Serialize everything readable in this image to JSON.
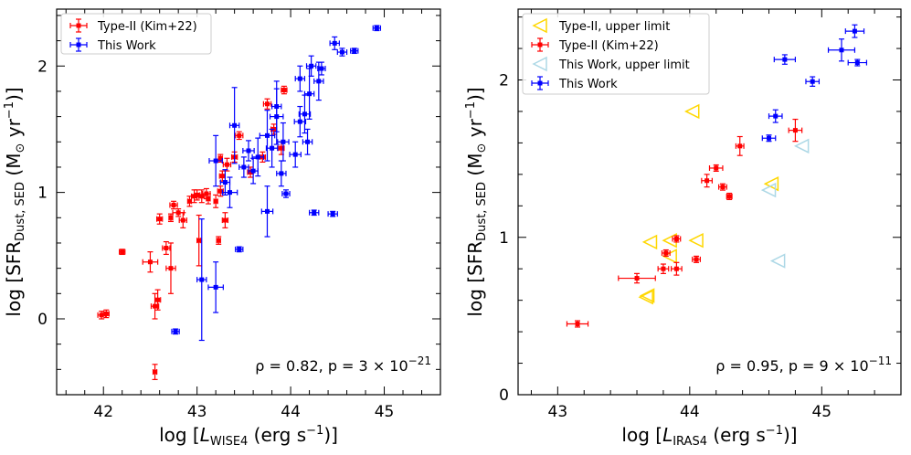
{
  "chart_data": [
    {
      "type": "scatter",
      "xlabel_parts": [
        "log [",
        "L",
        "WISE4",
        " (erg s",
        "−1",
        ")]"
      ],
      "ylabel_parts": [
        "log [SFR",
        "Dust, SED",
        " (M",
        "⊙",
        " yr",
        "−1",
        ")]"
      ],
      "xlim": [
        41.5,
        45.6
      ],
      "ylim": [
        -0.6,
        2.45
      ],
      "xticks": [
        42,
        43,
        44,
        45
      ],
      "xtick_labels": [
        "42",
        "43",
        "44",
        "45"
      ],
      "yticks": [
        0,
        1,
        2
      ],
      "ytick_labels": [
        "0",
        "1",
        "2"
      ],
      "annotation_main": "ρ = 0.82, p = 3 × 10",
      "annotation_exp": "−21",
      "legend_position": "top-left",
      "series": [
        {
          "name": "Type-II (Kim+22)",
          "color": "#ff0000",
          "points": [
            [
              41.98,
              0.03,
              0.04,
              0.03
            ],
            [
              42.03,
              0.04,
              0.03,
              0.03
            ],
            [
              42.2,
              0.53,
              0.03,
              0.02
            ],
            [
              42.5,
              0.45,
              0.08,
              0.08
            ],
            [
              42.55,
              -0.42,
              0.02,
              0.06
            ],
            [
              42.55,
              0.1,
              0.04,
              0.1
            ],
            [
              42.58,
              0.15,
              0.03,
              0.08
            ],
            [
              42.6,
              0.79,
              0.03,
              0.04
            ],
            [
              42.67,
              0.56,
              0.04,
              0.05
            ],
            [
              42.72,
              0.4,
              0.05,
              0.2
            ],
            [
              42.72,
              0.8,
              0.02,
              0.03
            ],
            [
              42.75,
              0.9,
              0.04,
              0.03
            ],
            [
              42.8,
              0.84,
              0.06,
              0.03
            ],
            [
              42.85,
              0.78,
              0.04,
              0.06
            ],
            [
              42.92,
              0.93,
              0.02,
              0.04
            ],
            [
              42.97,
              0.97,
              0.03,
              0.05
            ],
            [
              43.0,
              0.98,
              0.03,
              0.04
            ],
            [
              43.05,
              0.97,
              0.03,
              0.05
            ],
            [
              43.02,
              0.62,
              0.02,
              0.2
            ],
            [
              43.1,
              0.99,
              0.04,
              0.04
            ],
            [
              43.12,
              0.95,
              0.02,
              0.04
            ],
            [
              43.2,
              0.93,
              0.02,
              0.05
            ],
            [
              43.23,
              0.62,
              0.02,
              0.03
            ],
            [
              43.25,
              1.01,
              0.03,
              0.04
            ],
            [
              43.27,
              1.13,
              0.03,
              0.04
            ],
            [
              43.25,
              1.27,
              0.02,
              0.03
            ],
            [
              43.3,
              0.78,
              0.03,
              0.06
            ],
            [
              43.32,
              1.22,
              0.04,
              0.05
            ],
            [
              43.4,
              1.28,
              0.03,
              0.04
            ],
            [
              43.45,
              1.45,
              0.04,
              0.03
            ],
            [
              43.57,
              1.16,
              0.03,
              0.04
            ],
            [
              43.7,
              1.28,
              0.03,
              0.04
            ],
            [
              43.75,
              1.7,
              0.04,
              0.04
            ],
            [
              43.82,
              1.5,
              0.03,
              0.04
            ],
            [
              43.9,
              1.35,
              0.03,
              0.05
            ],
            [
              43.93,
              1.81,
              0.03,
              0.03
            ]
          ]
        },
        {
          "name": "This Work",
          "color": "#0000ff",
          "points": [
            [
              42.77,
              -0.1,
              0.04,
              0.02
            ],
            [
              43.05,
              0.31,
              0.05,
              0.48
            ],
            [
              43.2,
              0.25,
              0.08,
              0.2
            ],
            [
              43.2,
              1.25,
              0.07,
              0.2
            ],
            [
              43.3,
              1.08,
              0.05,
              0.1
            ],
            [
              43.35,
              1.0,
              0.08,
              0.12
            ],
            [
              43.4,
              1.53,
              0.05,
              0.3
            ],
            [
              43.45,
              0.55,
              0.04,
              0.02
            ],
            [
              43.5,
              1.2,
              0.05,
              0.08
            ],
            [
              43.55,
              1.33,
              0.06,
              0.08
            ],
            [
              43.6,
              1.17,
              0.05,
              0.1
            ],
            [
              43.65,
              1.28,
              0.06,
              0.15
            ],
            [
              43.75,
              0.85,
              0.06,
              0.2
            ],
            [
              43.75,
              1.45,
              0.08,
              0.2
            ],
            [
              43.8,
              1.35,
              0.06,
              0.15
            ],
            [
              43.85,
              1.6,
              0.07,
              0.22
            ],
            [
              43.85,
              1.68,
              0.05,
              0.2
            ],
            [
              43.9,
              1.15,
              0.05,
              0.1
            ],
            [
              43.92,
              1.4,
              0.06,
              0.15
            ],
            [
              43.95,
              0.99,
              0.04,
              0.03
            ],
            [
              44.05,
              1.3,
              0.06,
              0.1
            ],
            [
              44.1,
              1.56,
              0.06,
              0.12
            ],
            [
              44.1,
              1.9,
              0.05,
              0.1
            ],
            [
              44.15,
              1.62,
              0.06,
              0.15
            ],
            [
              44.18,
              1.4,
              0.05,
              0.1
            ],
            [
              44.2,
              1.78,
              0.05,
              0.2
            ],
            [
              44.22,
              2.0,
              0.05,
              0.08
            ],
            [
              44.25,
              0.84,
              0.05,
              0.02
            ],
            [
              44.3,
              1.88,
              0.05,
              0.15
            ],
            [
              44.33,
              1.98,
              0.04,
              0.05
            ],
            [
              44.45,
              0.83,
              0.05,
              0.02
            ],
            [
              44.47,
              2.18,
              0.05,
              0.05
            ],
            [
              44.55,
              2.11,
              0.05,
              0.03
            ],
            [
              44.68,
              2.12,
              0.04,
              0.02
            ],
            [
              44.92,
              2.3,
              0.04,
              0.02
            ]
          ]
        }
      ]
    },
    {
      "type": "scatter",
      "xlabel_parts": [
        "log [",
        "L",
        "IRAS4",
        " (erg s",
        "−1",
        ")]"
      ],
      "ylabel_parts": [
        "log [SFR",
        "Dust, SED",
        " (M",
        "⊙",
        " yr",
        "−1",
        ")]"
      ],
      "xlim": [
        42.7,
        45.6
      ],
      "ylim": [
        0.0,
        2.45
      ],
      "xticks": [
        43,
        44,
        45
      ],
      "xtick_labels": [
        "43",
        "44",
        "45"
      ],
      "yticks": [
        0,
        1,
        2
      ],
      "ytick_labels": [
        "0",
        "1",
        "2"
      ],
      "annotation_main": "ρ = 0.95, p = 9 × 10",
      "annotation_exp": "−11",
      "legend_position": "top-left",
      "series": [
        {
          "name": "Type-II, upper limit",
          "color": "#ffd700",
          "marker": "triangle-left",
          "points": [
            [
              43.7,
              0.97
            ],
            [
              43.85,
              0.98
            ],
            [
              44.05,
              0.98
            ],
            [
              43.85,
              0.88
            ],
            [
              43.68,
              0.63
            ],
            [
              43.67,
              0.62
            ],
            [
              44.02,
              1.8
            ],
            [
              44.62,
              1.34
            ]
          ]
        },
        {
          "name": "Type-II (Kim+22)",
          "color": "#ff0000",
          "points": [
            [
              43.15,
              0.45,
              0.08,
              0.02
            ],
            [
              43.6,
              0.74,
              0.14,
              0.03
            ],
            [
              43.8,
              0.8,
              0.04,
              0.03
            ],
            [
              43.82,
              0.9,
              0.03,
              0.02
            ],
            [
              43.9,
              0.99,
              0.03,
              0.02
            ],
            [
              43.9,
              0.8,
              0.04,
              0.04
            ],
            [
              44.05,
              0.86,
              0.03,
              0.02
            ],
            [
              44.13,
              1.36,
              0.04,
              0.04
            ],
            [
              44.2,
              1.44,
              0.05,
              0.02
            ],
            [
              44.25,
              1.32,
              0.03,
              0.02
            ],
            [
              44.3,
              1.26,
              0.02,
              0.02
            ],
            [
              44.38,
              1.58,
              0.03,
              0.06
            ],
            [
              44.8,
              1.68,
              0.05,
              0.07
            ]
          ]
        },
        {
          "name": "This Work, upper limit",
          "color": "#add8e6",
          "marker": "triangle-left",
          "points": [
            [
              44.6,
              1.3
            ],
            [
              44.85,
              1.58
            ],
            [
              44.67,
              0.85
            ]
          ]
        },
        {
          "name": "This Work",
          "color": "#0000ff",
          "points": [
            [
              44.6,
              1.63,
              0.05,
              0.02
            ],
            [
              44.65,
              1.77,
              0.05,
              0.04
            ],
            [
              44.72,
              2.13,
              0.08,
              0.03
            ],
            [
              44.93,
              1.99,
              0.05,
              0.03
            ],
            [
              45.15,
              2.19,
              0.1,
              0.07
            ],
            [
              45.25,
              2.31,
              0.07,
              0.04
            ],
            [
              45.27,
              2.11,
              0.07,
              0.02
            ]
          ]
        }
      ]
    }
  ]
}
